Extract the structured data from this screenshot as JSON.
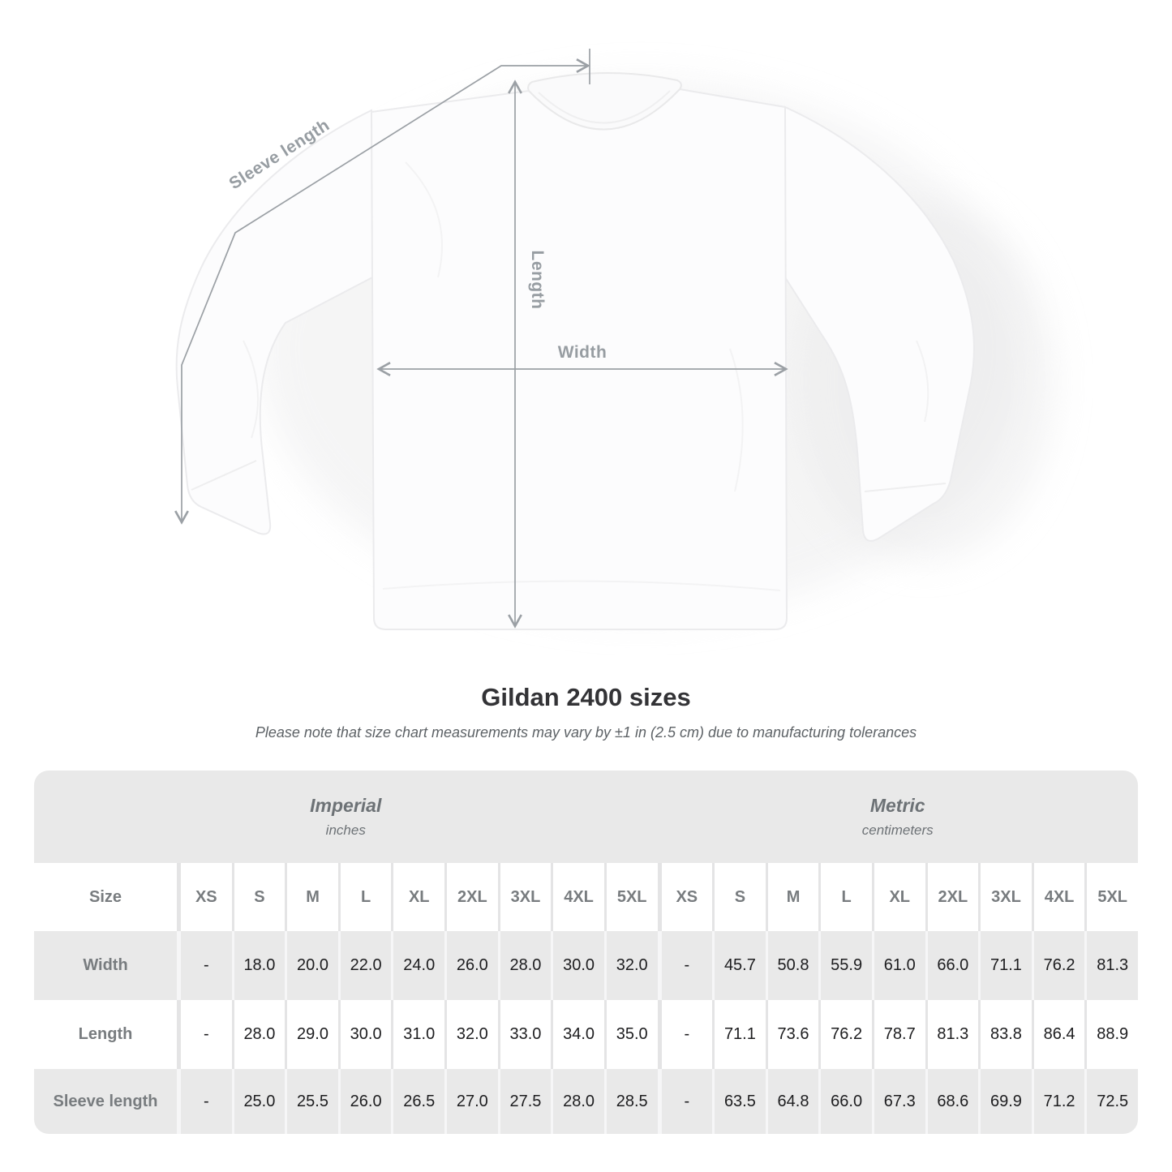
{
  "page": {
    "background": "#ffffff"
  },
  "diagram": {
    "sleeve_length_label": "Sleeve length",
    "length_label": "Length",
    "width_label": "Width",
    "line_color": "#9ba0a5"
  },
  "title": "Gildan 2400 sizes",
  "subtitle": "Please note that size chart measurements may vary by ±1 in (2.5 cm) due to manufacturing tolerances",
  "table": {
    "unit_groups": [
      {
        "label": "Imperial",
        "sublabel": "inches"
      },
      {
        "label": "Metric",
        "sublabel": "centimeters"
      }
    ],
    "size_header": "Size",
    "sizes": [
      "XS",
      "S",
      "M",
      "L",
      "XL",
      "2XL",
      "3XL",
      "4XL",
      "5XL"
    ],
    "rows": [
      {
        "label": "Width",
        "imperial": [
          "-",
          "18.0",
          "20.0",
          "22.0",
          "24.0",
          "26.0",
          "28.0",
          "30.0",
          "32.0"
        ],
        "metric": [
          "-",
          "45.7",
          "50.8",
          "55.9",
          "61.0",
          "66.0",
          "71.1",
          "76.2",
          "81.3"
        ]
      },
      {
        "label": "Length",
        "imperial": [
          "-",
          "28.0",
          "29.0",
          "30.0",
          "31.0",
          "32.0",
          "33.0",
          "34.0",
          "35.0"
        ],
        "metric": [
          "-",
          "71.1",
          "73.6",
          "76.2",
          "78.7",
          "81.3",
          "83.8",
          "86.4",
          "88.9"
        ]
      },
      {
        "label": "Sleeve length",
        "imperial": [
          "-",
          "25.0",
          "25.5",
          "26.0",
          "26.5",
          "27.0",
          "27.5",
          "28.0",
          "28.5"
        ],
        "metric": [
          "-",
          "63.5",
          "64.8",
          "66.0",
          "67.3",
          "68.6",
          "69.9",
          "71.2",
          "72.5"
        ]
      }
    ],
    "colors": {
      "band_bg": "#e9e9e9",
      "row_gray": "#e9e9e9",
      "row_white": "#ffffff",
      "label_text": "#787c7f",
      "value_text": "#1d1d1f",
      "band_text": "#6d7276"
    }
  }
}
